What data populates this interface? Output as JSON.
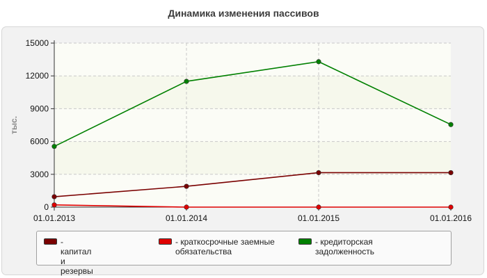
{
  "title": "Динамика изменения пассивов",
  "chart_data": {
    "type": "line",
    "title": "Динамика изменения пассивов",
    "xlabel": "",
    "ylabel": "тыс.",
    "categories": [
      "01.01.2013",
      "01.01.2014",
      "01.01.2015",
      "01.01.2016"
    ],
    "ylim": [
      0,
      15000
    ],
    "yticks": [
      0,
      3000,
      6000,
      9000,
      12000,
      15000
    ],
    "grid": true,
    "legend_position": "bottom",
    "series": [
      {
        "name": "- капитал и резервы",
        "color": "#7a0000",
        "values": [
          950,
          1900,
          3150,
          3150
        ]
      },
      {
        "name": "- краткосрочные заемные обязательства",
        "color": "#e00000",
        "values": [
          200,
          0,
          0,
          0
        ]
      },
      {
        "name": "- кредиторская задолженность",
        "color": "#008000",
        "values": [
          5550,
          11500,
          13300,
          7550
        ]
      }
    ]
  }
}
